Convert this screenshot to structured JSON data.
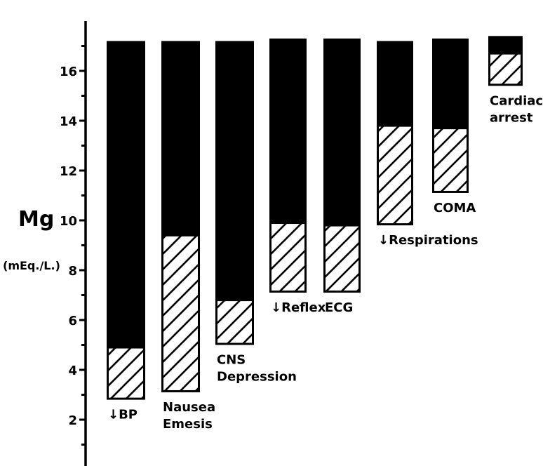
{
  "chart_data": {
    "type": "bar",
    "ylabel": "Mg",
    "yunit": "(mEq./L.)",
    "ylim": [
      0,
      17.5
    ],
    "yticks": [
      2,
      4,
      6,
      8,
      10,
      12,
      14,
      16
    ],
    "grid": false,
    "legend": "none",
    "colors": {
      "solid": "#000000",
      "hatched_fill": "#ffffff",
      "hatch_line": "#000000"
    },
    "categories": [
      {
        "label": [
          "↓BP"
        ],
        "hatched_start": 2.8,
        "hatched_end": 4.9,
        "solid_end": 17.2
      },
      {
        "label": [
          "Nausea",
          "Emesis"
        ],
        "hatched_start": 3.1,
        "hatched_end": 9.4,
        "solid_end": 17.2
      },
      {
        "label": [
          "CNS",
          "Depression"
        ],
        "hatched_start": 5.0,
        "hatched_end": 6.8,
        "solid_end": 17.2
      },
      {
        "label": [
          "↓Reflex"
        ],
        "hatched_start": 7.1,
        "hatched_end": 9.9,
        "solid_end": 17.3
      },
      {
        "label": [
          "ECG"
        ],
        "hatched_start": 7.1,
        "hatched_end": 9.8,
        "solid_end": 17.3
      },
      {
        "label": [
          "↓Respirations"
        ],
        "hatched_start": 9.8,
        "hatched_end": 13.8,
        "solid_end": 17.2
      },
      {
        "label": [
          "COMA"
        ],
        "hatched_start": 11.1,
        "hatched_end": 13.7,
        "solid_end": 17.3
      },
      {
        "label": [
          "Cardiac",
          "arrest"
        ],
        "hatched_start": 15.4,
        "hatched_end": 16.7,
        "solid_end": 17.4
      }
    ]
  }
}
